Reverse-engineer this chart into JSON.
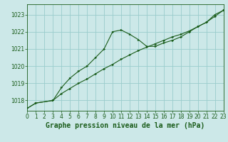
{
  "title": "Graphe pression niveau de la mer (hPa)",
  "bg_color": "#cce8e8",
  "grid_color": "#99cccc",
  "line_color": "#1a5c1a",
  "xmin": 0,
  "xmax": 23,
  "ymin": 1017.4,
  "ymax": 1023.6,
  "yticks": [
    1018,
    1019,
    1020,
    1021,
    1022,
    1023
  ],
  "xticks": [
    0,
    1,
    2,
    3,
    4,
    5,
    6,
    7,
    8,
    9,
    10,
    11,
    12,
    13,
    14,
    15,
    16,
    17,
    18,
    19,
    20,
    21,
    22,
    23
  ],
  "series1_x": [
    0,
    1,
    3,
    4,
    5,
    6,
    7,
    8,
    9,
    10,
    11,
    12,
    13,
    14,
    15,
    16,
    17,
    18,
    19,
    20,
    21,
    22,
    23
  ],
  "series1_y": [
    1017.55,
    1017.85,
    1018.0,
    1018.75,
    1019.3,
    1019.7,
    1020.0,
    1020.5,
    1021.0,
    1022.0,
    1022.1,
    1021.85,
    1021.55,
    1021.15,
    1021.15,
    1021.35,
    1021.5,
    1021.7,
    1022.0,
    1022.3,
    1022.55,
    1023.0,
    1023.25
  ],
  "series2_x": [
    0,
    1,
    3,
    4,
    5,
    6,
    7,
    8,
    9,
    10,
    11,
    12,
    13,
    14,
    15,
    16,
    17,
    18,
    19,
    20,
    21,
    22,
    23
  ],
  "series2_y": [
    1017.55,
    1017.85,
    1018.0,
    1018.4,
    1018.7,
    1019.0,
    1019.25,
    1019.55,
    1019.85,
    1020.1,
    1020.4,
    1020.65,
    1020.9,
    1021.1,
    1021.3,
    1021.5,
    1021.7,
    1021.85,
    1022.05,
    1022.3,
    1022.55,
    1022.9,
    1023.25
  ],
  "title_fontsize": 7,
  "tick_fontsize": 5.5
}
